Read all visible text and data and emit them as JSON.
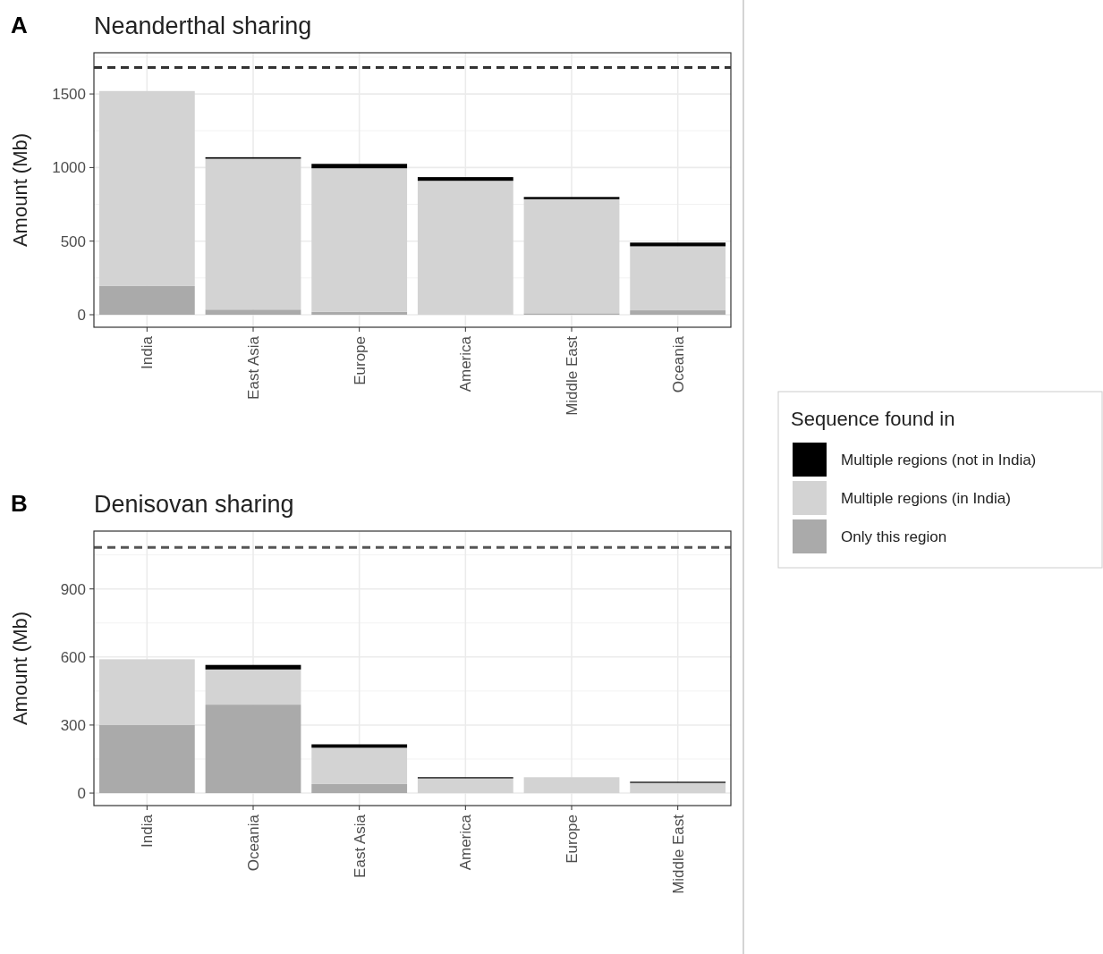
{
  "chart_data": [
    {
      "type": "bar",
      "title": "Neanderthal sharing",
      "ylabel": "Amount (Mb)",
      "annotations": [
        "A"
      ],
      "categories": [
        "India",
        "East Asia",
        "Europe",
        "America",
        "Middle East",
        "Oceania"
      ],
      "stacked": true,
      "legend": "right",
      "legend_title": "Sequence found in",
      "grid": true,
      "ylim": [
        -85,
        1780
      ],
      "yticks": [
        0,
        500,
        1000,
        1500
      ],
      "ref_lines": [
        {
          "axis": "y",
          "value": 1680,
          "color": "#333333",
          "line_style": "dashed"
        }
      ],
      "series": [
        {
          "name": "Only this region",
          "color": "#aaaaaa",
          "values": [
            195,
            35,
            20,
            null,
            10,
            30
          ]
        },
        {
          "name": "Multiple regions (in India)",
          "color": "#d3d3d3",
          "values": [
            1325,
            1025,
            975,
            910,
            775,
            435
          ]
        },
        {
          "name": "Multiple regions (not in India)",
          "color": "#000000",
          "values": [
            0,
            10,
            30,
            25,
            15,
            25
          ]
        }
      ]
    },
    {
      "type": "bar",
      "title": "Denisovan sharing",
      "ylabel": "Amount (Mb)",
      "annotations": [
        "B"
      ],
      "categories": [
        "India",
        "Oceania",
        "East Asia",
        "America",
        "Europe",
        "Middle East"
      ],
      "stacked": true,
      "grid": true,
      "ylim": [
        -55,
        1155
      ],
      "yticks": [
        0,
        300,
        600,
        900
      ],
      "ref_lines": [
        {
          "axis": "y",
          "value": 1083,
          "color": "#555555",
          "line_style": "dashed"
        }
      ],
      "series": [
        {
          "color": "#aaaaaa",
          "values": [
            300,
            390,
            40,
            0,
            0,
            0
          ]
        },
        {
          "color": "#d3d3d3",
          "values": [
            290,
            155,
            160,
            65,
            70,
            45
          ]
        },
        {
          "color": "#000000",
          "values": [
            0,
            20,
            15,
            5,
            0,
            5
          ]
        }
      ]
    }
  ]
}
